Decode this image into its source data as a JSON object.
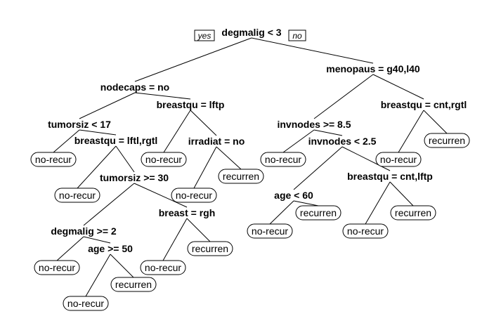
{
  "tree": {
    "branch_labels": {
      "left": "yes",
      "right": "no"
    },
    "nodes": [
      {
        "id": "n1",
        "label": "degmalig < 3",
        "leaf": false
      },
      {
        "id": "n2",
        "label": "nodecaps = no",
        "leaf": false
      },
      {
        "id": "n3",
        "label": "menopaus = g40,l40",
        "leaf": false
      },
      {
        "id": "n4",
        "label": "tumorsiz < 17",
        "leaf": false
      },
      {
        "id": "n5",
        "label": "breastqu = lftp",
        "leaf": false
      },
      {
        "id": "n6",
        "label": "invnodes >= 8.5",
        "leaf": false
      },
      {
        "id": "n7",
        "label": "breastqu = cnt,rgtl",
        "leaf": false
      },
      {
        "id": "n8",
        "label": "no-recur",
        "leaf": true
      },
      {
        "id": "n9",
        "label": "breastqu = lftl,rgtl",
        "leaf": false
      },
      {
        "id": "n10",
        "label": "no-recur",
        "leaf": true
      },
      {
        "id": "n11",
        "label": "irradiat = no",
        "leaf": false
      },
      {
        "id": "n12",
        "label": "no-recur",
        "leaf": true
      },
      {
        "id": "n13",
        "label": "invnodes < 2.5",
        "leaf": false
      },
      {
        "id": "n14",
        "label": "no-recur",
        "leaf": true
      },
      {
        "id": "n15",
        "label": "recurren",
        "leaf": true
      },
      {
        "id": "n16",
        "label": "no-recur",
        "leaf": true
      },
      {
        "id": "n17",
        "label": "tumorsiz >= 30",
        "leaf": false
      },
      {
        "id": "n18",
        "label": "no-recur",
        "leaf": true
      },
      {
        "id": "n19",
        "label": "recurren",
        "leaf": true
      },
      {
        "id": "n20",
        "label": "age < 60",
        "leaf": false
      },
      {
        "id": "n21",
        "label": "breastqu = cnt,lftp",
        "leaf": false
      },
      {
        "id": "n22",
        "label": "degmalig >= 2",
        "leaf": false
      },
      {
        "id": "n23",
        "label": "breast = rgh",
        "leaf": false
      },
      {
        "id": "n24",
        "label": "no-recur",
        "leaf": true
      },
      {
        "id": "n25",
        "label": "recurren",
        "leaf": true
      },
      {
        "id": "n26",
        "label": "no-recur",
        "leaf": true
      },
      {
        "id": "n27",
        "label": "recurren",
        "leaf": true
      },
      {
        "id": "n28",
        "label": "no-recur",
        "leaf": true
      },
      {
        "id": "n29",
        "label": "age >= 50",
        "leaf": false
      },
      {
        "id": "n30",
        "label": "no-recur",
        "leaf": true
      },
      {
        "id": "n31",
        "label": "recurren",
        "leaf": true
      },
      {
        "id": "n32",
        "label": "no-recur",
        "leaf": true
      },
      {
        "id": "n33",
        "label": "recurren",
        "leaf": true
      }
    ],
    "edges": [
      [
        "n1",
        "n2"
      ],
      [
        "n1",
        "n3"
      ],
      [
        "n2",
        "n4"
      ],
      [
        "n2",
        "n5"
      ],
      [
        "n3",
        "n6"
      ],
      [
        "n3",
        "n7"
      ],
      [
        "n4",
        "n8"
      ],
      [
        "n4",
        "n9"
      ],
      [
        "n5",
        "n10"
      ],
      [
        "n5",
        "n11"
      ],
      [
        "n6",
        "n12"
      ],
      [
        "n6",
        "n13"
      ],
      [
        "n7",
        "n14"
      ],
      [
        "n7",
        "n15"
      ],
      [
        "n9",
        "n16"
      ],
      [
        "n9",
        "n17"
      ],
      [
        "n11",
        "n18"
      ],
      [
        "n11",
        "n19"
      ],
      [
        "n13",
        "n20"
      ],
      [
        "n13",
        "n21"
      ],
      [
        "n17",
        "n22"
      ],
      [
        "n17",
        "n23"
      ],
      [
        "n20",
        "n24"
      ],
      [
        "n20",
        "n25"
      ],
      [
        "n21",
        "n26"
      ],
      [
        "n21",
        "n27"
      ],
      [
        "n22",
        "n28"
      ],
      [
        "n22",
        "n29"
      ],
      [
        "n23",
        "n30"
      ],
      [
        "n23",
        "n31"
      ],
      [
        "n29",
        "n32"
      ],
      [
        "n29",
        "n33"
      ]
    ]
  }
}
